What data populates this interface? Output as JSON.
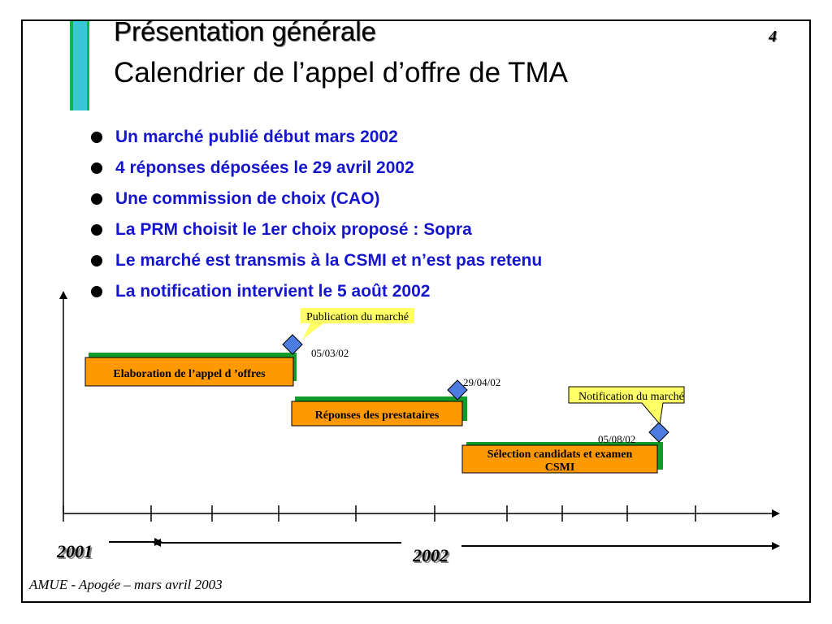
{
  "slide": {
    "title": "Présentation générale",
    "subtitle": "Calendrier de l’appel d’offre de TMA",
    "page_number": "4",
    "footer": "AMUE - Apogée – mars avril 2003",
    "accent_colors": {
      "bar_fill": "#39c6d8",
      "bar_border": "#16b24a"
    }
  },
  "bullets": [
    "Un marché publié début mars 2002",
    "4 réponses déposées le 29 avril 2002",
    "Une commission de choix (CAO)",
    "La PRM choisit le 1er choix proposé : Sopra",
    "Le marché est transmis à la CSMI et n’est pas retenu",
    "La notification intervient le 5 août 2002"
  ],
  "timeline": {
    "years": [
      "2001",
      "2002"
    ],
    "tasks": [
      {
        "label": "Elaboration de l’appel d ’offres",
        "fill": "#ff9900",
        "shadow": "#119c2a"
      },
      {
        "label": "Réponses des prestataires",
        "fill": "#ff9900",
        "shadow": "#119c2a"
      },
      {
        "label_line1": "Sélection candidats et examen",
        "label_line2": "CSMI",
        "fill": "#ff9900",
        "shadow": "#119c2a"
      }
    ],
    "milestones": [
      {
        "date": "05/03/02"
      },
      {
        "date": "29/04/02"
      },
      {
        "date": "05/08/02"
      }
    ],
    "callouts": [
      {
        "text": "Publication du marché",
        "fill": "#ffff66"
      },
      {
        "text": "Notification du marché",
        "fill": "#ffff66"
      }
    ],
    "milestone_color": "#4d7be0"
  }
}
